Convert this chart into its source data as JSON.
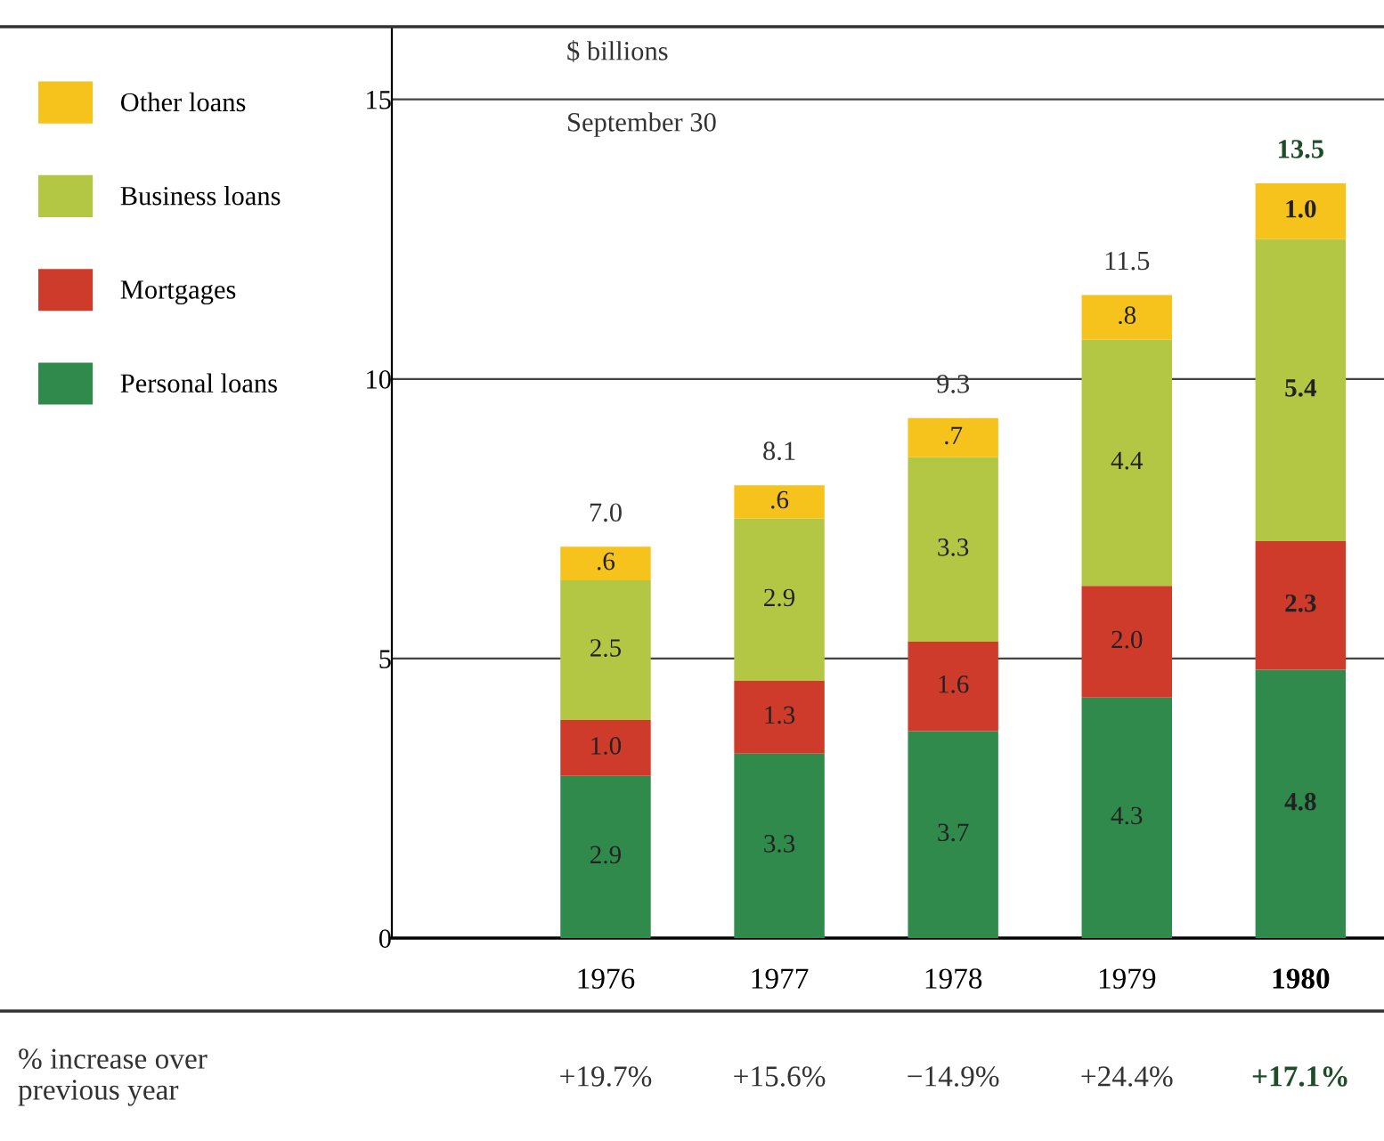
{
  "chart_data": {
    "type": "bar",
    "stacked": true,
    "subtitle": "$ billions",
    "title": "September 30",
    "categories": [
      "1976",
      "1977",
      "1978",
      "1979",
      "1980"
    ],
    "series": [
      {
        "name": "Personal loans",
        "color": "#2f8a4c",
        "values": [
          2.9,
          3.3,
          3.7,
          4.3,
          4.8
        ],
        "value_labels": [
          "2.9",
          "3.3",
          "3.7",
          "4.3",
          "4.8"
        ]
      },
      {
        "name": "Mortgages",
        "color": "#cf3b2b",
        "values": [
          1.0,
          1.3,
          1.6,
          2.0,
          2.3
        ],
        "value_labels": [
          "1.0",
          "1.3",
          "1.6",
          "2.0",
          "2.3"
        ]
      },
      {
        "name": "Business loans",
        "color": "#b4c744",
        "values": [
          2.5,
          2.9,
          3.3,
          4.4,
          5.4
        ],
        "value_labels": [
          "2.5",
          "2.9",
          "3.3",
          "4.4",
          "5.4"
        ]
      },
      {
        "name": "Other loans",
        "color": "#f6c21c",
        "values": [
          0.6,
          0.6,
          0.7,
          0.8,
          1.0
        ],
        "value_labels": [
          ".6",
          ".6",
          ".7",
          ".8",
          "1.0"
        ]
      }
    ],
    "totals": [
      "7.0",
      "8.1",
      "9.3",
      "11.5",
      "13.5"
    ],
    "ylim": [
      0,
      16.3
    ],
    "yticks": [
      0,
      5,
      10,
      15
    ],
    "grid": "y",
    "legend": "left",
    "annotations": [
      "% increase over\nprevious year",
      "+19.7%",
      "+15.6%",
      "−14.9%",
      "+24.4%",
      "+17.1%"
    ]
  }
}
